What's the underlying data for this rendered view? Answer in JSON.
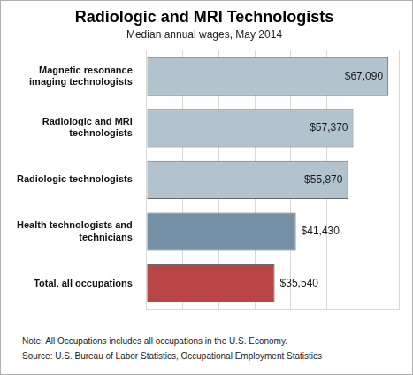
{
  "chart_data": {
    "type": "bar",
    "title": "Radiologic and MRI Technologists",
    "subtitle": "Median annual wages, May 2014",
    "orientation": "horizontal",
    "categories": [
      "Magnetic resonance imaging technologists",
      "Radiologic and MRI technologists",
      "Radiologic technologists",
      "Health technologists and technicians",
      "Total, all occupations"
    ],
    "values": [
      67090,
      57370,
      55870,
      41430,
      35540
    ],
    "value_labels": [
      "$67,090",
      "$57,370",
      "$55,870",
      "$41,430",
      "$35,540"
    ],
    "colors": [
      "#b3c3ce",
      "#b3c3ce",
      "#b3c3ce",
      "#7690a6",
      "#b84444"
    ],
    "xlim": [
      0,
      70000
    ],
    "xticks": [
      0,
      10000,
      20000,
      30000,
      40000,
      50000,
      60000,
      70000
    ],
    "grid": true,
    "data_labels": true,
    "tick_labels": "y",
    "annotations": [
      "Note: All Occupations includes all occupations in the U.S. Economy.",
      "Source: U.S. Bureau of Labor Statistics, Occupational Employment Statistics"
    ]
  }
}
